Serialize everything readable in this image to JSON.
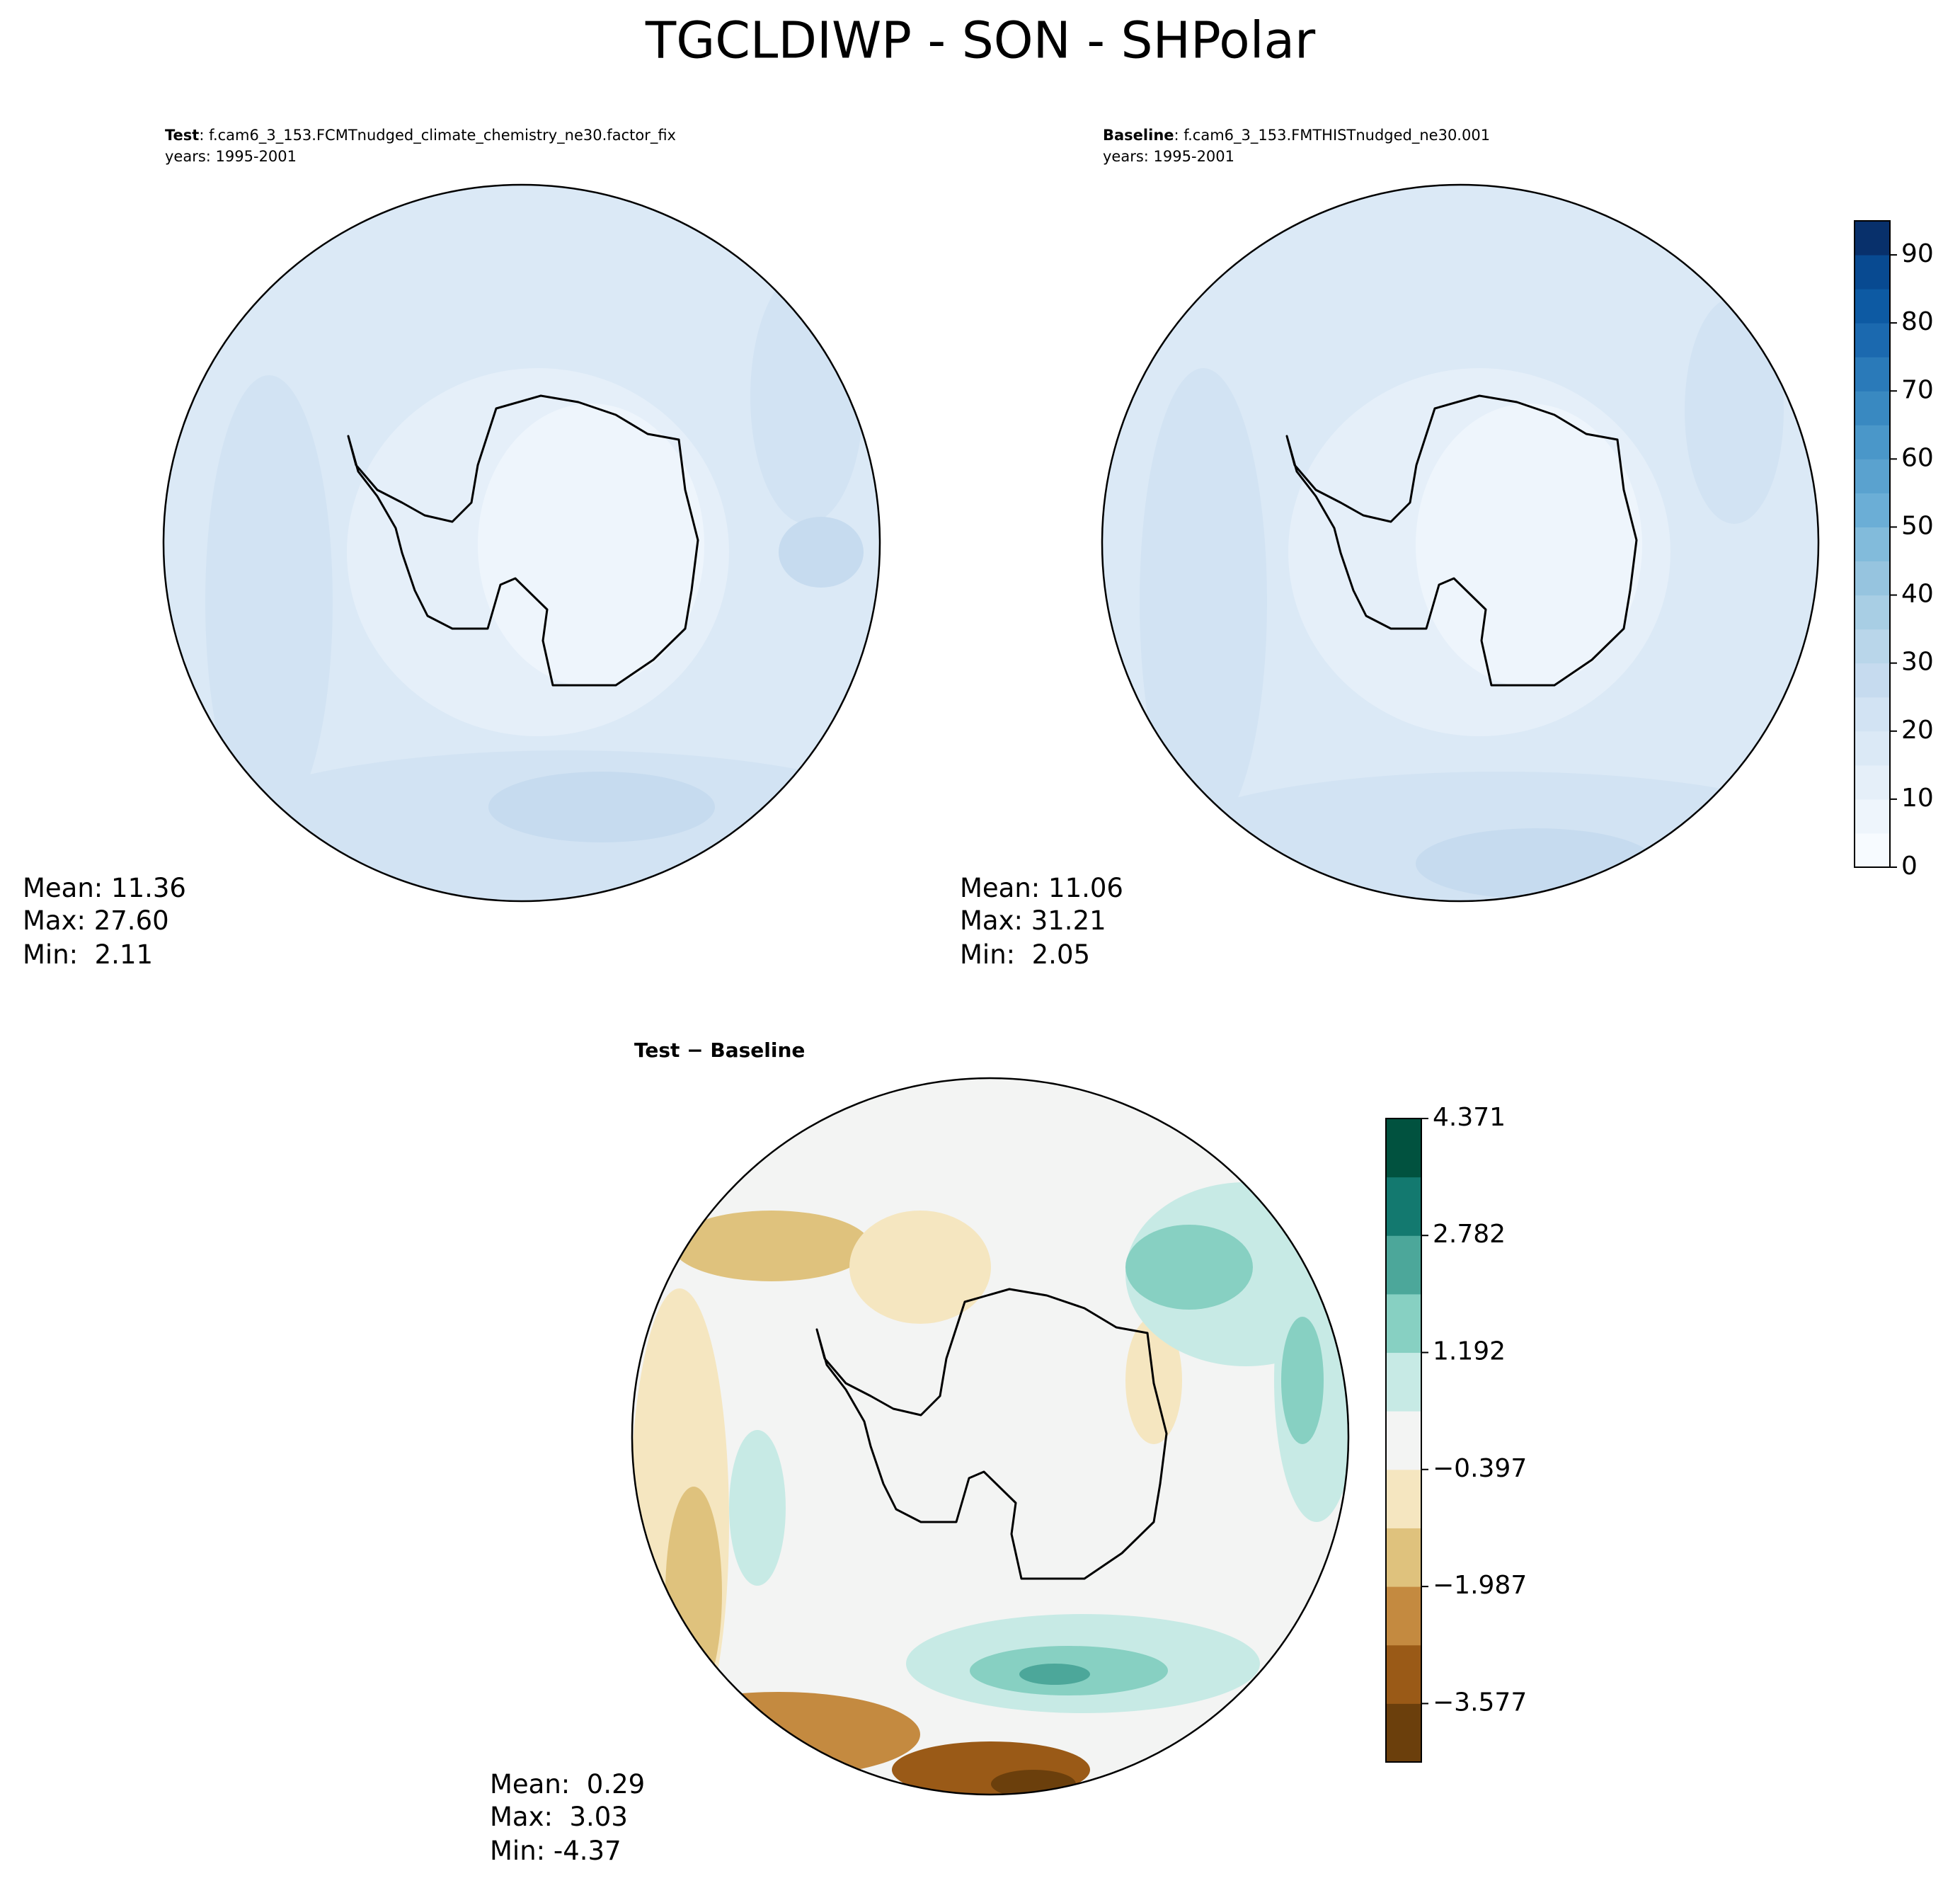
{
  "title": "TGCLDIWP - SON - SHPolar",
  "panels": [
    {
      "header_bold": "Test",
      "header": ": f.cam6_3_153.FCMTnudged_climate_chemistry_ne30.factor_fix",
      "years": "years: 1995-2001",
      "stats": [
        "Mean: 11.36",
        "Max: 27.60",
        "Min:  2.11"
      ]
    },
    {
      "header_bold": "Baseline",
      "header": ": f.cam6_3_153.FMTHISTnudged_ne30.001",
      "years": "years: 1995-2001",
      "stats": [
        "Mean: 11.06",
        "Max: 31.21",
        "Min:  2.05"
      ]
    },
    {
      "header_bold": "Test − Baseline",
      "stats": [
        "Mean:  0.29",
        "Max:  3.03",
        "Min: -4.37"
      ]
    }
  ],
  "colorbars": [
    {
      "range": [
        0,
        95
      ],
      "ticks": [
        0,
        10,
        20,
        30,
        40,
        50,
        60,
        70,
        80,
        90
      ],
      "colors": [
        "#f7fbff",
        "#eef5fc",
        "#e5eff9",
        "#dbe9f6",
        "#d2e3f3",
        "#c6dbef",
        "#b9d6ea",
        "#a8cee4",
        "#96c4df",
        "#82bbdb",
        "#6baed6",
        "#5aa2cf",
        "#4a97c9",
        "#3989c1",
        "#2a7ab9",
        "#1b69af",
        "#0d5aa3",
        "#084a91",
        "#08306b"
      ]
    },
    {
      "range": [
        -4.371,
        4.371
      ],
      "ticks": [
        {
          "value": -3.577,
          "label": "−3.577"
        },
        {
          "value": -1.987,
          "label": "−1.987"
        },
        {
          "value": -0.397,
          "label": "−0.397"
        },
        1.192,
        2.782,
        4.371
      ],
      "colors": [
        "#6b3f0c",
        "#9a5a17",
        "#c48a40",
        "#dfc27d",
        "#f5e6c0",
        "#f3f4f3",
        "#c7eae5",
        "#87d0c2",
        "#4ca79a",
        "#13796f",
        "#01523f"
      ]
    }
  ]
}
